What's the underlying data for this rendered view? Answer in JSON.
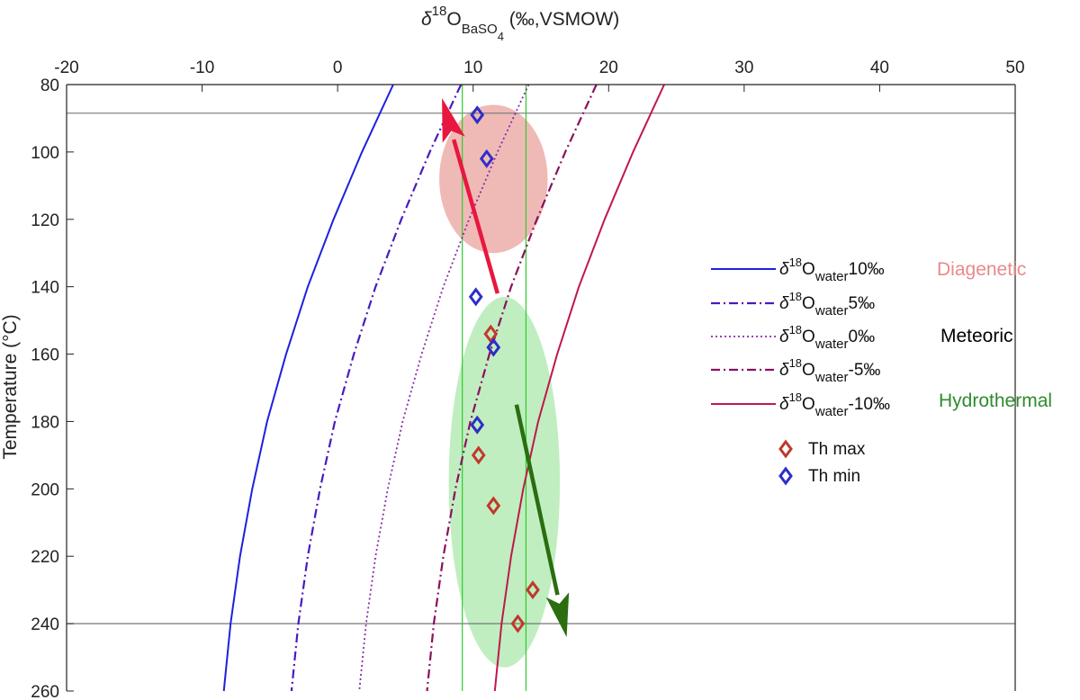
{
  "chart_data": {
    "type": "line",
    "xlabel": "δ18OBaSO4 (‰,VSMOW)",
    "xlabel_parts": {
      "delta": "δ",
      "sup": "18",
      "base": "O",
      "sub": "BaSO",
      "subsub": "4",
      "rest": " (‰,VSMOW)"
    },
    "ylabel": "Temperature (°C)",
    "xlim": [
      -20,
      50
    ],
    "ylim": [
      80,
      260
    ],
    "y_reversed": true,
    "x_axis_position": "top",
    "x_ticks": [
      -20,
      -10,
      0,
      10,
      20,
      30,
      40,
      50
    ],
    "y_ticks": [
      80,
      100,
      120,
      140,
      160,
      180,
      200,
      220,
      240,
      260
    ],
    "grid": false,
    "series": [
      {
        "name": "δ18Owater10‰",
        "legend_main": "O",
        "legend_sub": "water",
        "legend_val": "10‰",
        "color": "#1f1fe0",
        "dash": "",
        "width": 2,
        "points": [
          [
            4.1,
            80
          ],
          [
            1.8,
            100
          ],
          [
            -0.3,
            120
          ],
          [
            -2.2,
            140
          ],
          [
            -3.8,
            160
          ],
          [
            -5.2,
            180
          ],
          [
            -6.3,
            200
          ],
          [
            -7.2,
            220
          ],
          [
            -7.9,
            240
          ],
          [
            -8.4,
            260
          ]
        ]
      },
      {
        "name": "δ18Owater5‰",
        "legend_main": "O",
        "legend_sub": "water",
        "legend_val": "5‰",
        "color": "#4a1ac0",
        "dash": "10,4,2,4",
        "width": 2.2,
        "points": [
          [
            9.1,
            80
          ],
          [
            6.8,
            100
          ],
          [
            4.7,
            120
          ],
          [
            2.8,
            140
          ],
          [
            1.2,
            160
          ],
          [
            -0.2,
            180
          ],
          [
            -1.3,
            200
          ],
          [
            -2.2,
            220
          ],
          [
            -2.9,
            240
          ],
          [
            -3.4,
            260
          ]
        ]
      },
      {
        "name": "δ18Owater0‰",
        "legend_main": "O",
        "legend_sub": "water",
        "legend_val": "0‰",
        "color": "#8a2aa8",
        "dash": "2,3",
        "width": 1.8,
        "points": [
          [
            14.1,
            80
          ],
          [
            11.8,
            100
          ],
          [
            9.7,
            120
          ],
          [
            7.8,
            140
          ],
          [
            6.2,
            160
          ],
          [
            4.8,
            180
          ],
          [
            3.7,
            200
          ],
          [
            2.8,
            220
          ],
          [
            2.1,
            240
          ],
          [
            1.6,
            260
          ]
        ]
      },
      {
        "name": "δ18Owater-5‰",
        "legend_main": "O",
        "legend_sub": "water",
        "legend_val": "-5‰",
        "color": "#8a1060",
        "dash": "10,4,2,4",
        "width": 2.2,
        "points": [
          [
            19.1,
            80
          ],
          [
            16.8,
            100
          ],
          [
            14.7,
            120
          ],
          [
            12.8,
            140
          ],
          [
            11.2,
            160
          ],
          [
            9.8,
            180
          ],
          [
            8.7,
            200
          ],
          [
            7.8,
            220
          ],
          [
            7.1,
            240
          ],
          [
            6.6,
            260
          ]
        ]
      },
      {
        "name": "δ18Owater-10‰",
        "legend_main": "O",
        "legend_sub": "water",
        "legend_val": "-10‰",
        "color": "#c0184a",
        "dash": "",
        "width": 2,
        "points": [
          [
            24.1,
            80
          ],
          [
            21.8,
            100
          ],
          [
            19.7,
            120
          ],
          [
            17.8,
            140
          ],
          [
            16.2,
            160
          ],
          [
            14.8,
            180
          ],
          [
            13.7,
            200
          ],
          [
            12.8,
            220
          ],
          [
            12.1,
            240
          ],
          [
            11.6,
            260
          ]
        ]
      }
    ],
    "scatter_series": [
      {
        "name": "Th max",
        "color": "#c0392b",
        "points": [
          [
            11.3,
            154
          ],
          [
            10.4,
            190
          ],
          [
            11.5,
            205
          ],
          [
            14.4,
            230
          ],
          [
            13.3,
            240
          ]
        ]
      },
      {
        "name": "Th min",
        "color": "#2d2dc8",
        "points": [
          [
            10.3,
            89
          ],
          [
            11.0,
            102
          ],
          [
            10.2,
            143
          ],
          [
            11.5,
            158
          ],
          [
            10.3,
            181
          ]
        ]
      }
    ],
    "reference_lines": {
      "horizontal_y": [
        88.5,
        240
      ],
      "vertical_x": [
        9.2,
        13.9
      ]
    },
    "regions": [
      {
        "name": "Diagenetic",
        "color": "#e9a09a",
        "center": [
          11.5,
          108
        ],
        "radius": [
          4.0,
          22
        ]
      },
      {
        "name": "Hydrothermal",
        "color": "#a8e8a8",
        "center": [
          12.3,
          198
        ],
        "radius": [
          4.1,
          55
        ]
      }
    ],
    "arrows": [
      {
        "color": "#e8173f",
        "from": [
          11.8,
          142
        ],
        "to": [
          7.7,
          84
        ]
      },
      {
        "color": "#2a6e10",
        "from": [
          13.2,
          175
        ],
        "to": [
          16.9,
          244
        ]
      }
    ],
    "category_labels": [
      {
        "text": "Diagenetic",
        "color": "#e88a8a"
      },
      {
        "text": "Meteoric",
        "color": "#000000"
      },
      {
        "text": "Hydrothermal",
        "color": "#2e8b2e"
      }
    ],
    "legend_prefix_sup": "18",
    "legend_placement": "right"
  }
}
